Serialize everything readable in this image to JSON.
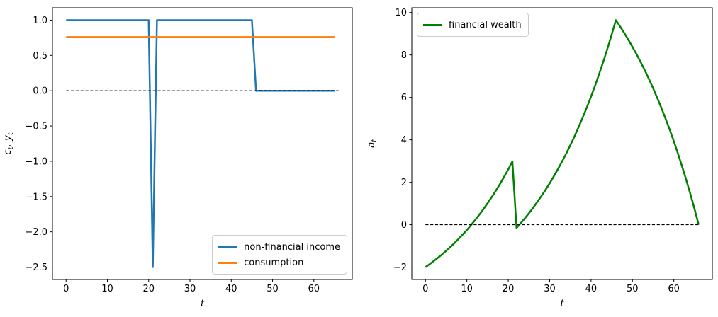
{
  "figure_background": "#ffffff",
  "chart_data": [
    {
      "type": "line",
      "title": "",
      "xlabel": "t",
      "ylabel": "c_t, y_t",
      "xlim": [
        -3.3,
        69.3
      ],
      "ylim": [
        -2.675,
        1.175
      ],
      "grid": false,
      "xtick_values": [
        0,
        10,
        20,
        30,
        40,
        50,
        60
      ],
      "xtick_labels": [
        "0",
        "10",
        "20",
        "30",
        "40",
        "50",
        "60"
      ],
      "ytick_values": [
        1.0,
        0.5,
        0.0,
        -0.5,
        -1.0,
        -1.5,
        -2.0,
        -2.5
      ],
      "ytick_labels": [
        "1.0",
        "0.5",
        "0.0",
        "−0.5",
        "−1.0",
        "−1.5",
        "−2.0",
        "−2.5"
      ],
      "legend": {
        "position": "lower-right"
      },
      "series": [
        {
          "name": "non-financial income",
          "color": "#1f77b4",
          "line_width": 2.5,
          "style": "solid",
          "in_legend": true,
          "x": [
            0,
            20,
            21,
            22,
            45,
            46,
            65
          ],
          "y": [
            1.0,
            1.0,
            -2.5,
            1.0,
            1.0,
            0.0,
            0.0
          ]
        },
        {
          "name": "consumption",
          "color": "#ff7f0e",
          "line_width": 2.5,
          "style": "solid",
          "in_legend": true,
          "x": [
            0,
            65
          ],
          "y": [
            0.76,
            0.76
          ]
        },
        {
          "name": "zero line",
          "color": "#000000",
          "line_width": 1.1,
          "style": "dashed",
          "in_legend": false,
          "x": [
            0,
            66
          ],
          "y": [
            0.0,
            0.0
          ]
        }
      ]
    },
    {
      "type": "line",
      "title": "",
      "xlabel": "t",
      "ylabel": "a_t",
      "xlim": [
        -3.3,
        69.3
      ],
      "ylim": [
        -2.582,
        10.222
      ],
      "grid": false,
      "xtick_values": [
        0,
        10,
        20,
        30,
        40,
        50,
        60
      ],
      "xtick_labels": [
        "0",
        "10",
        "20",
        "30",
        "40",
        "50",
        "60"
      ],
      "ytick_values": [
        10,
        8,
        6,
        4,
        2,
        0,
        -2
      ],
      "ytick_labels": [
        "10",
        "8",
        "6",
        "4",
        "2",
        "0",
        "−2"
      ],
      "legend": {
        "position": "upper-left"
      },
      "series": [
        {
          "name": "financial wealth",
          "color": "#008000",
          "line_width": 2.5,
          "style": "solid",
          "in_legend": true,
          "x_is_index": true,
          "y": [
            -2.0,
            -1.86,
            -1.71,
            -1.56,
            -1.4,
            -1.23,
            -1.05,
            -0.87,
            -0.67,
            -0.46,
            -0.25,
            -0.02,
            0.22,
            0.47,
            0.73,
            1.01,
            1.3,
            1.6,
            1.92,
            2.26,
            2.61,
            2.98,
            -0.15,
            0.07,
            0.3,
            0.54,
            0.8,
            1.07,
            1.35,
            1.64,
            1.95,
            2.28,
            2.62,
            2.98,
            3.35,
            3.75,
            4.16,
            4.6,
            5.06,
            5.54,
            6.04,
            6.57,
            7.13,
            7.71,
            8.32,
            8.97,
            9.64,
            9.35,
            9.04,
            8.72,
            8.38,
            8.03,
            7.66,
            7.27,
            6.86,
            6.43,
            5.97,
            5.5,
            5.0,
            4.48,
            3.93,
            3.35,
            2.74,
            2.11,
            1.44,
            0.74,
            0.0
          ]
        },
        {
          "name": "zero line",
          "color": "#000000",
          "line_width": 1.1,
          "style": "dashed",
          "in_legend": false,
          "x": [
            0,
            66
          ],
          "y": [
            0.0,
            0.0
          ]
        }
      ]
    }
  ]
}
